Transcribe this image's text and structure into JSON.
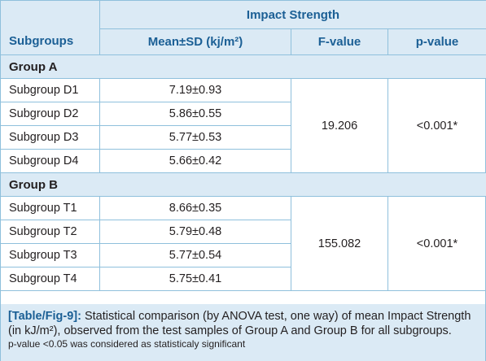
{
  "table": {
    "header": {
      "group_label": "Impact Strength",
      "col_subgroups": "Subgroups",
      "col_mean": "Mean±SD (kj/m²)",
      "col_f": "F-value",
      "col_p": "p-value"
    },
    "groups": [
      {
        "name": "Group A",
        "f_value": "19.206",
        "p_value": "<0.001*",
        "rows": [
          {
            "subgroup": "Subgroup D1",
            "mean_sd": "7.19±0.93"
          },
          {
            "subgroup": "Subgroup D2",
            "mean_sd": "5.86±0.55"
          },
          {
            "subgroup": "Subgroup D3",
            "mean_sd": "5.77±0.53"
          },
          {
            "subgroup": "Subgroup D4",
            "mean_sd": "5.66±0.42"
          }
        ]
      },
      {
        "name": "Group B",
        "f_value": "155.082",
        "p_value": "<0.001*",
        "rows": [
          {
            "subgroup": "Subgroup T1",
            "mean_sd": "8.66±0.35"
          },
          {
            "subgroup": "Subgroup T2",
            "mean_sd": "5.79±0.48"
          },
          {
            "subgroup": "Subgroup T3",
            "mean_sd": "5.77±0.54"
          },
          {
            "subgroup": "Subgroup T4",
            "mean_sd": "5.75±0.41"
          }
        ]
      }
    ]
  },
  "caption": {
    "label": "[Table/Fig-9]:",
    "text": "Statistical comparison (by ANOVA test, one way) of mean Impact Strength (in kJ/m²), observed from the test samples of Group A and Group B for all subgroups.",
    "note": "p-value <0.05 was considered as statisticaly significant"
  },
  "colors": {
    "header_text": "#1b5f95",
    "header_bg": "#dbeaf5",
    "border": "#8fc0dc"
  }
}
